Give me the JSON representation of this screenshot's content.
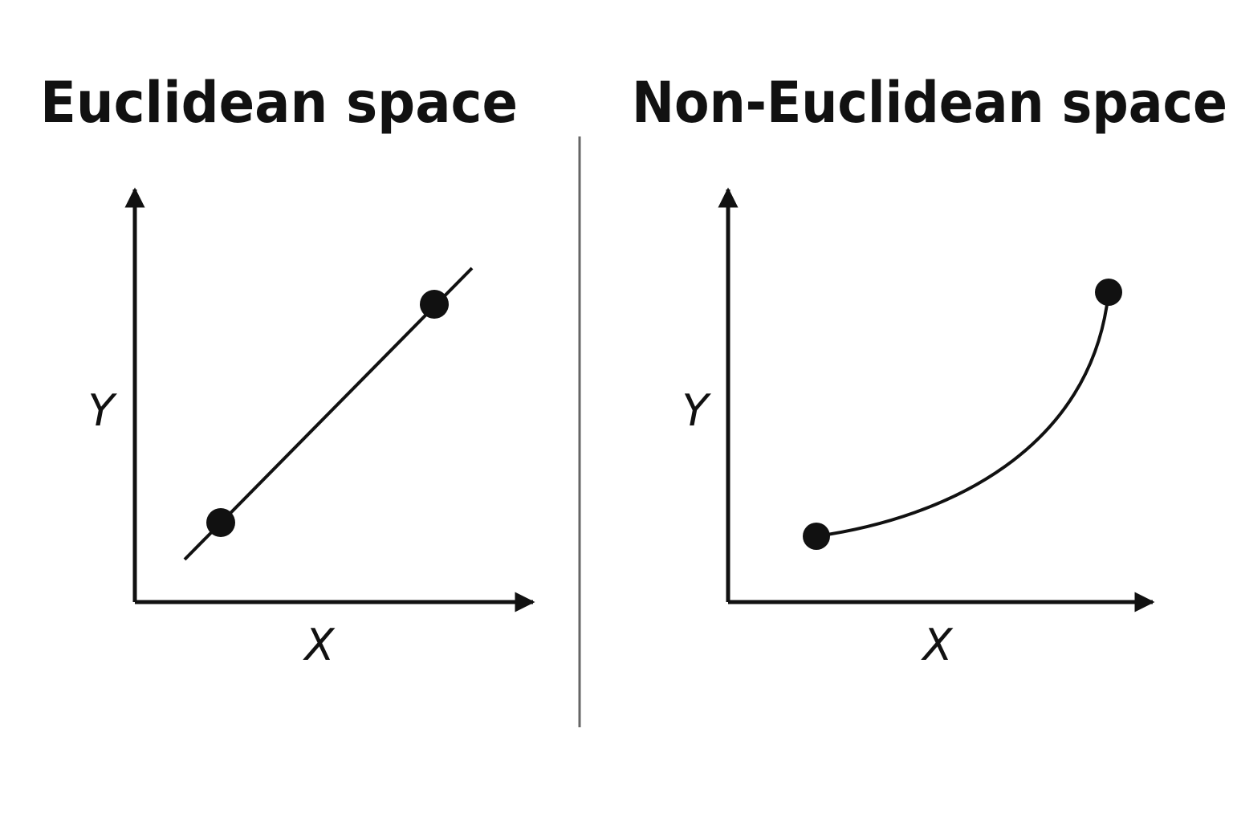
{
  "panels": [
    {
      "title": "Euclidean space",
      "x_label": "X",
      "y_label": "Y"
    },
    {
      "title": "Non-Euclidean space",
      "x_label": "X",
      "y_label": "Y"
    }
  ]
}
